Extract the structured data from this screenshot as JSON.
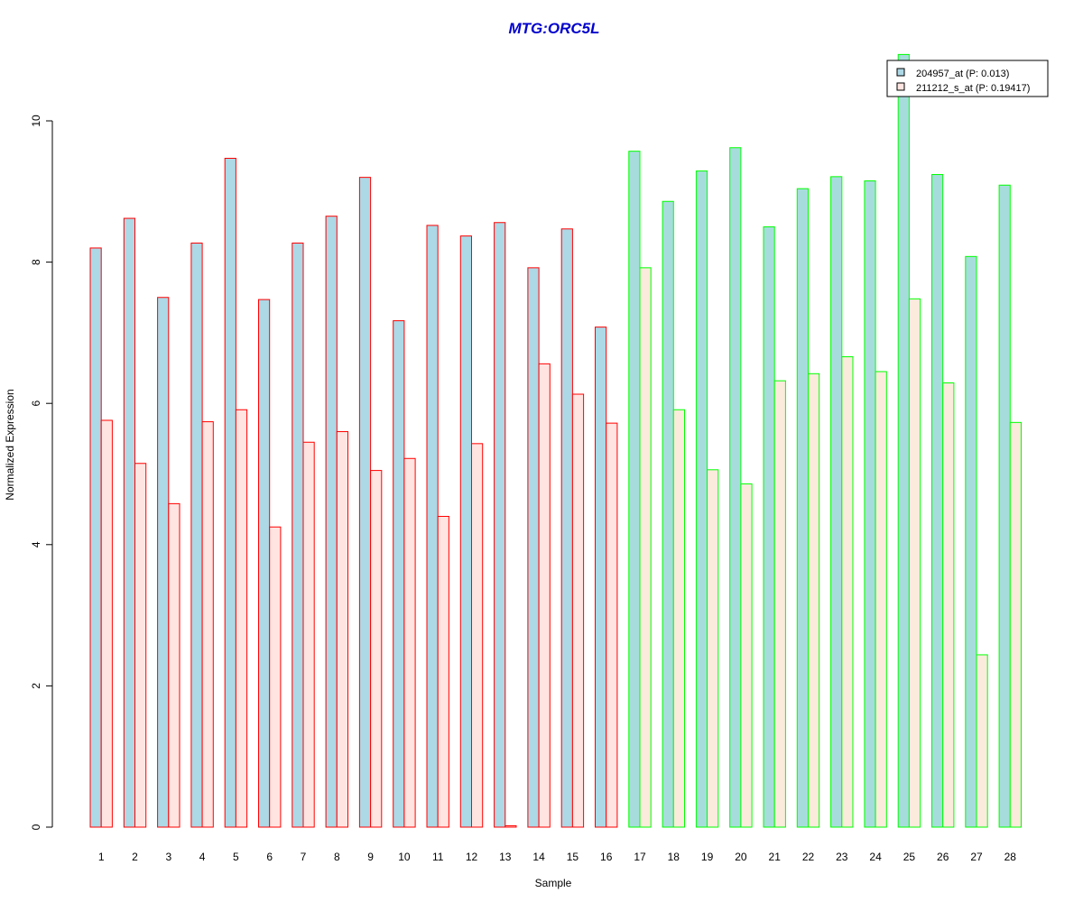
{
  "chart_data": {
    "type": "bar",
    "title": "MTG:ORC5L",
    "xlabel": "Sample",
    "ylabel": "Normalized Expression",
    "ylim": [
      0,
      10
    ],
    "yticks": [
      0,
      2,
      4,
      6,
      8,
      10
    ],
    "grid": false,
    "legend_position": "top-right",
    "categories": [
      "1",
      "2",
      "3",
      "4",
      "5",
      "6",
      "7",
      "8",
      "9",
      "10",
      "11",
      "12",
      "13",
      "14",
      "15",
      "16",
      "17",
      "18",
      "19",
      "20",
      "21",
      "22",
      "23",
      "24",
      "25",
      "26",
      "27",
      "28"
    ],
    "group_border_colors": [
      "#FF0000",
      "#FF0000",
      "#FF0000",
      "#FF0000",
      "#FF0000",
      "#FF0000",
      "#FF0000",
      "#FF0000",
      "#FF0000",
      "#FF0000",
      "#FF0000",
      "#FF0000",
      "#FF0000",
      "#FF0000",
      "#FF0000",
      "#FF0000",
      "#00FF00",
      "#00FF00",
      "#00FF00",
      "#00FF00",
      "#00FF00",
      "#00FF00",
      "#00FF00",
      "#00FF00",
      "#00FF00",
      "#00FF00",
      "#00FF00",
      "#00FF00"
    ],
    "series": [
      {
        "name": "204957_at (P: 0.013)",
        "fill": "#ADD8E6",
        "fill_alt": "#A6DDDC",
        "values": [
          8.2,
          8.62,
          7.5,
          8.27,
          9.47,
          7.47,
          8.27,
          8.65,
          9.2,
          7.17,
          8.52,
          8.37,
          8.56,
          7.92,
          8.47,
          7.08,
          9.57,
          8.86,
          9.29,
          9.62,
          8.5,
          9.04,
          9.21,
          9.15,
          10.94,
          9.24,
          8.08,
          9.09
        ]
      },
      {
        "name": "211212_s_at (P: 0.19417)",
        "fill": "#FFE4E1",
        "fill_alt": "#FAEBDC",
        "values": [
          5.76,
          5.15,
          4.58,
          5.74,
          5.91,
          4.25,
          5.45,
          5.6,
          5.05,
          5.22,
          4.4,
          5.43,
          0.02,
          6.56,
          6.13,
          5.72,
          7.92,
          5.91,
          5.06,
          4.86,
          6.32,
          6.42,
          6.66,
          6.45,
          7.48,
          6.29,
          2.44,
          5.73
        ]
      }
    ]
  }
}
